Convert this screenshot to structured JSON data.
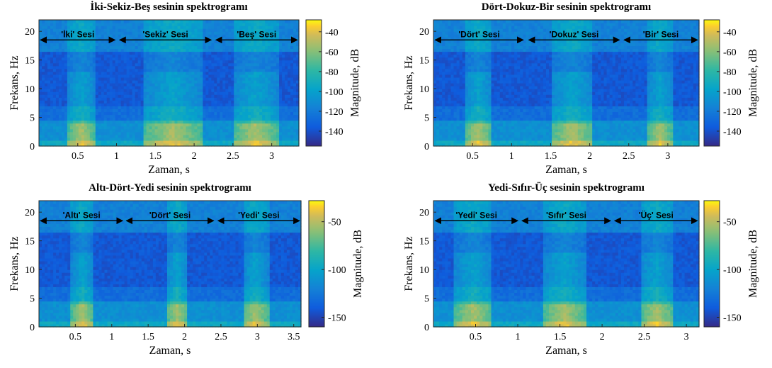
{
  "chart_data": [
    {
      "type": "heatmap",
      "title": "İki-Sekiz-Beş sesinin spektrogramı",
      "xlabel": "Zaman, s",
      "ylabel": "Frekans, Hz",
      "colorbar_label": "Magnitude, dB",
      "xlim": [
        0,
        3.35
      ],
      "ylim": [
        0,
        22
      ],
      "clim": [
        -155,
        -28
      ],
      "xticks": [
        0.5,
        1,
        1.5,
        2,
        2.5,
        3
      ],
      "yticks": [
        0,
        5,
        10,
        15,
        20
      ],
      "cticks": [
        -40,
        -60,
        -80,
        -100,
        -120,
        -140
      ],
      "segments": [
        {
          "label": "'İki' Sesi",
          "start": 0.02,
          "end": 0.98
        },
        {
          "label": "'Sekiz' Sesi",
          "start": 1.04,
          "end": 2.22
        },
        {
          "label": "'Beş' Sesi",
          "start": 2.28,
          "end": 3.33
        }
      ],
      "voiced": [
        [
          0.38,
          0.72
        ],
        [
          1.35,
          2.1
        ],
        [
          2.5,
          3.08
        ]
      ]
    },
    {
      "type": "heatmap",
      "title": "Dört-Dokuz-Bir sesinin spektrogramı",
      "xlabel": "Zaman, s",
      "ylabel": "Frekans, Hz",
      "colorbar_label": "Magnitude, dB",
      "xlim": [
        0,
        3.4
      ],
      "ylim": [
        0,
        22
      ],
      "clim": [
        -155,
        -28
      ],
      "xticks": [
        0.5,
        1,
        1.5,
        2,
        2.5,
        3
      ],
      "yticks": [
        0,
        5,
        10,
        15,
        20
      ],
      "cticks": [
        -40,
        -60,
        -80,
        -100,
        -120,
        -140
      ],
      "segments": [
        {
          "label": "'Dört' Sesi",
          "start": 0.02,
          "end": 1.15
        },
        {
          "label": "'Dokuz' Sesi",
          "start": 1.22,
          "end": 2.38
        },
        {
          "label": "'Bir' Sesi",
          "start": 2.44,
          "end": 3.38
        }
      ],
      "voiced": [
        [
          0.4,
          0.75
        ],
        [
          1.5,
          2.05
        ],
        [
          2.75,
          3.05
        ]
      ]
    },
    {
      "type": "heatmap",
      "title": "Altı-Dört-Yedi sesinin spektrogramı",
      "xlabel": "Zaman, s",
      "ylabel": "Frekans, Hz",
      "colorbar_label": "Magnitude, dB",
      "xlim": [
        0,
        3.6
      ],
      "ylim": [
        0,
        22
      ],
      "clim": [
        -160,
        -28
      ],
      "xticks": [
        0.5,
        1,
        1.5,
        2,
        2.5,
        3,
        3.5
      ],
      "yticks": [
        0,
        5,
        10,
        15,
        20
      ],
      "cticks": [
        -50,
        -100,
        -150
      ],
      "segments": [
        {
          "label": "'Altı' Sesi",
          "start": 0.02,
          "end": 1.15
        },
        {
          "label": "'Dört' Sesi",
          "start": 1.2,
          "end": 2.4
        },
        {
          "label": "'Yedi' Sesi",
          "start": 2.46,
          "end": 3.58
        }
      ],
      "voiced": [
        [
          0.45,
          0.75
        ],
        [
          1.75,
          2.05
        ],
        [
          2.8,
          3.15
        ]
      ]
    },
    {
      "type": "heatmap",
      "title": "Yedi-Sıfır-Üç sesinin spektrogramı",
      "xlabel": "Zaman, s",
      "ylabel": "Frekans, Hz",
      "colorbar_label": "Magnitude, dB",
      "xlim": [
        0,
        3.15
      ],
      "ylim": [
        0,
        22
      ],
      "clim": [
        -160,
        -28
      ],
      "xticks": [
        0.5,
        1,
        1.5,
        2,
        2.5,
        3
      ],
      "yticks": [
        0,
        5,
        10,
        15,
        20
      ],
      "cticks": [
        -50,
        -100,
        -150
      ],
      "segments": [
        {
          "label": "'Yedi' Sesi",
          "start": 0.02,
          "end": 1.0
        },
        {
          "label": "'Sıfır' Sesi",
          "start": 1.05,
          "end": 2.1
        },
        {
          "label": "'Üç' Sesi",
          "start": 2.15,
          "end": 3.13
        }
      ],
      "voiced": [
        [
          0.25,
          0.7
        ],
        [
          1.3,
          1.8
        ],
        [
          2.45,
          2.85
        ]
      ]
    }
  ]
}
